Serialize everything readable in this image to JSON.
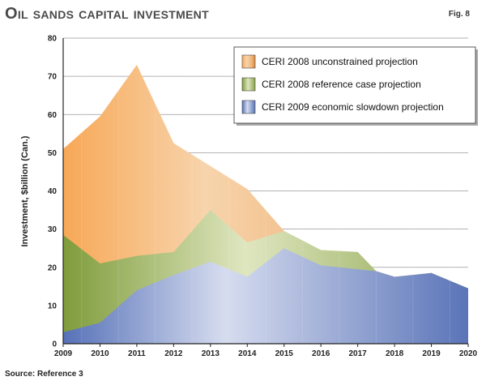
{
  "header": {
    "title": "Oil sands capital investment",
    "fig_label": "Fig. 8",
    "source": "Source: Reference 3"
  },
  "chart_data": {
    "type": "area",
    "x": [
      2009,
      2010,
      2011,
      2012,
      2013,
      2014,
      2015,
      2016,
      2017,
      2018,
      2019,
      2020
    ],
    "xlabel": "",
    "ylabel": "Investment, $billion (Can.)",
    "ylim": [
      0,
      80
    ],
    "yticks": [
      0,
      10,
      20,
      30,
      40,
      50,
      60,
      70,
      80
    ],
    "grid": "horizontal",
    "legend_position": "top-right",
    "series": [
      {
        "name": "CERI 2008 unconstrained projection",
        "color": "#f2a55a",
        "points": [
          [
            2009,
            51
          ],
          [
            2010,
            59.5
          ],
          [
            2011,
            73
          ],
          [
            2012,
            52.5
          ],
          [
            2013,
            46.5
          ],
          [
            2014,
            40.5
          ],
          [
            2015,
            29.5
          ],
          [
            2016,
            24.5
          ],
          [
            2017,
            24
          ],
          [
            2017.5,
            19
          ],
          [
            2018,
            17.5
          ],
          [
            2019,
            18.5
          ],
          [
            2020,
            14.5
          ]
        ]
      },
      {
        "name": "CERI 2008 reference case projection",
        "color": "#9cb55a",
        "points": [
          [
            2009,
            28.5
          ],
          [
            2010,
            21
          ],
          [
            2011,
            23
          ],
          [
            2012,
            24
          ],
          [
            2013,
            35
          ],
          [
            2014,
            26.5
          ],
          [
            2015,
            29.5
          ],
          [
            2016,
            24.5
          ],
          [
            2017,
            24
          ],
          [
            2017.5,
            19
          ],
          [
            2018,
            17.5
          ],
          [
            2019,
            18.5
          ],
          [
            2020,
            14.5
          ]
        ]
      },
      {
        "name": "CERI 2009 economic slowdown projection",
        "color": "#6f88c8",
        "points": [
          [
            2009,
            3
          ],
          [
            2010,
            5.5
          ],
          [
            2011,
            14
          ],
          [
            2012,
            18
          ],
          [
            2013,
            21.5
          ],
          [
            2014,
            17.5
          ],
          [
            2015,
            25
          ],
          [
            2016,
            20.5
          ],
          [
            2017,
            19.5
          ],
          [
            2017.5,
            19
          ],
          [
            2018,
            17.5
          ],
          [
            2019,
            18.5
          ],
          [
            2020,
            14.5
          ]
        ]
      }
    ]
  }
}
